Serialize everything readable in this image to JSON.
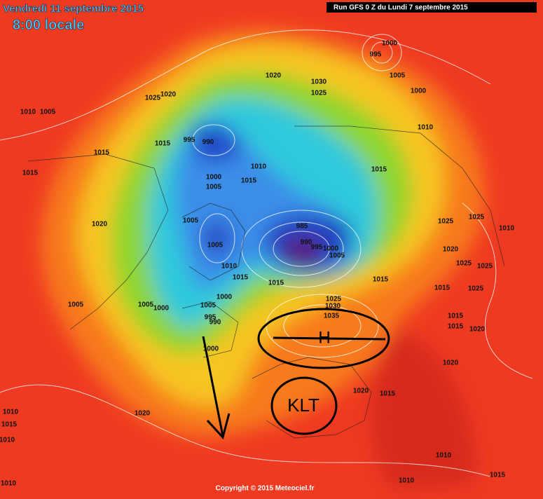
{
  "header": {
    "date": "Vendredi 11 septembre 2015",
    "time": "8:00 locale",
    "run": "Run GFS 0 Z du Lundi 7 septembre 2015"
  },
  "footer": {
    "copyright": "Copyright © 2015 Meteociel.fr"
  },
  "annotations": {
    "high": "H",
    "klt": "KLT"
  },
  "isobar_labels": [
    "1010",
    "1005",
    "1015",
    "1015",
    "1020",
    "1025",
    "1015",
    "995",
    "990",
    "1020",
    "1030",
    "1025",
    "1000",
    "995",
    "1005",
    "1000",
    "1010",
    "1015",
    "1010",
    "1000",
    "1005",
    "1015",
    "1020",
    "1005",
    "1005",
    "985",
    "990",
    "995",
    "1000",
    "1005",
    "1010",
    "1015",
    "1015",
    "1015",
    "1025",
    "1025",
    "1010",
    "1020",
    "1025",
    "1025",
    "1015",
    "1025",
    "1015",
    "1015",
    "1020",
    "1020",
    "1005",
    "1005",
    "1000",
    "1000",
    "1005",
    "995",
    "990",
    "1000",
    "1025",
    "1030",
    "1035",
    "1020",
    "1015",
    "1020",
    "1010",
    "1015",
    "1010",
    "1010",
    "1010",
    "1015",
    "1010"
  ]
}
